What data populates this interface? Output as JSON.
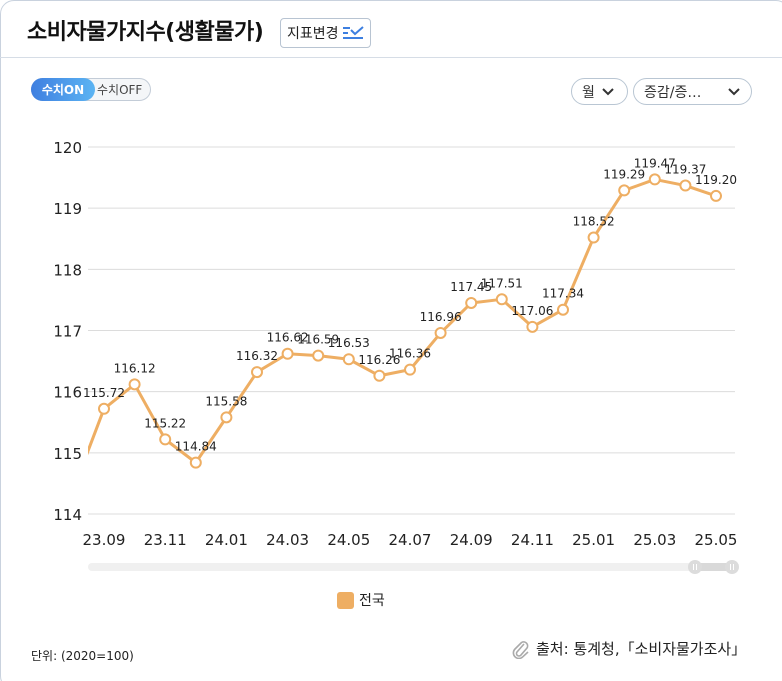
{
  "header": {
    "title": "소비자물가지수(생활물가)",
    "indicator_button": "지표변경"
  },
  "controls": {
    "value_on": "수치ON",
    "value_off": "수치OFF",
    "period_select": "월",
    "change_select": "증감/증…"
  },
  "legend": {
    "label": "전국",
    "color": "#eeae63"
  },
  "footer": {
    "unit": "단위: (2020=100)",
    "source": "출처: 통계청,「소비자물가조사」"
  },
  "chart_data": {
    "type": "line",
    "title": "소비자물가지수(생활물가)",
    "xlabel": "",
    "ylabel": "",
    "ylim": [
      114,
      120
    ],
    "yticks": [
      114,
      115,
      116,
      117,
      118,
      119,
      120
    ],
    "grid": true,
    "legend_position": "bottom",
    "x": [
      "23.09",
      "23.10",
      "23.11",
      "23.12",
      "24.01",
      "24.02",
      "24.03",
      "24.04",
      "24.05",
      "24.06",
      "24.07",
      "24.08",
      "24.09",
      "24.10",
      "24.11",
      "24.12",
      "25.01",
      "25.02",
      "25.03",
      "25.04",
      "25.05"
    ],
    "xtick_labels": [
      "23.09",
      "23.11",
      "24.01",
      "24.03",
      "24.05",
      "24.07",
      "24.09",
      "24.11",
      "25.01",
      "25.03",
      "25.05"
    ],
    "series": [
      {
        "name": "전국",
        "color": "#eeae63",
        "values": [
          115.72,
          116.12,
          115.22,
          114.84,
          115.58,
          116.32,
          116.62,
          116.59,
          116.53,
          116.26,
          116.36,
          116.96,
          117.45,
          117.51,
          117.06,
          117.34,
          118.52,
          119.29,
          119.47,
          119.37,
          119.2
        ]
      }
    ],
    "clipped_prev_value": 114.4
  }
}
